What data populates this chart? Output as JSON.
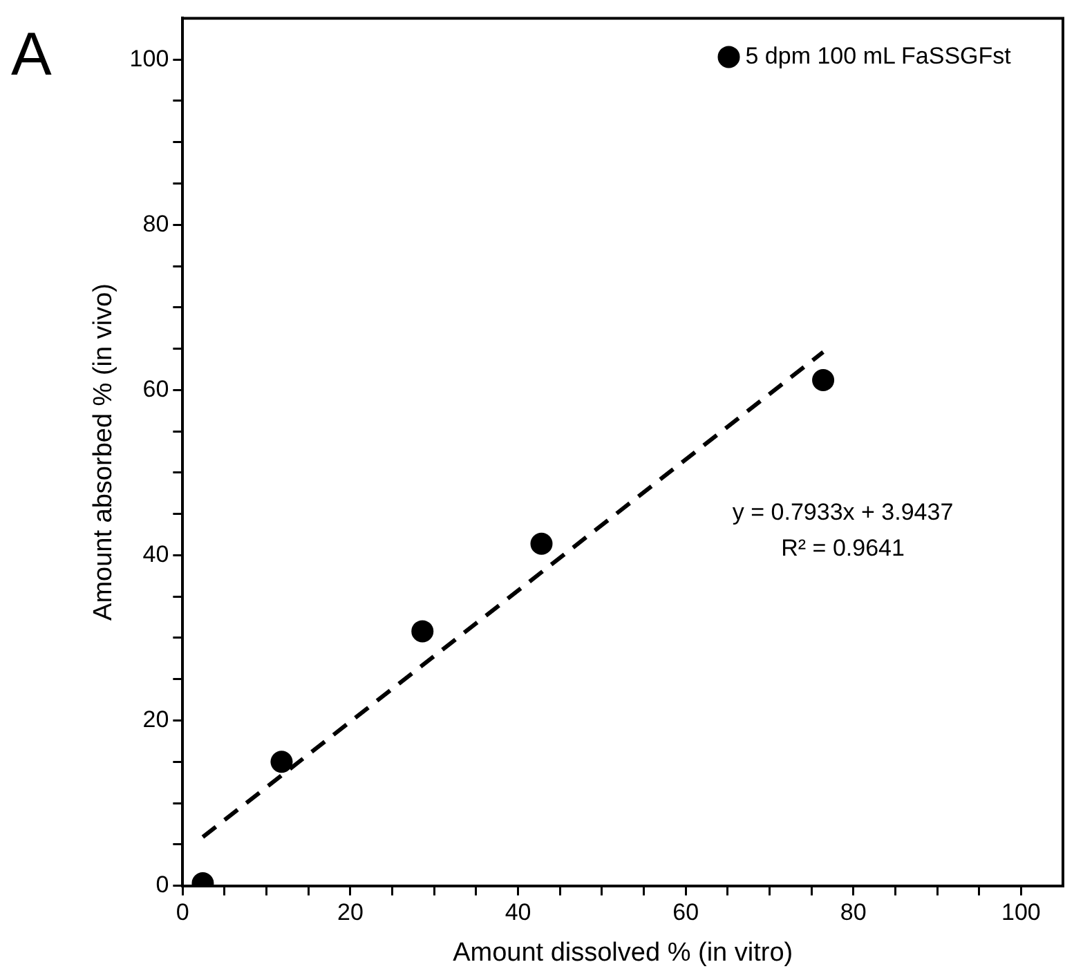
{
  "chart_data": {
    "type": "scatter",
    "xlabel": "Amount dissolved % (in vitro)",
    "ylabel": "Amount absorbed % (in vivo)",
    "xlim": [
      0,
      105
    ],
    "ylim": [
      0,
      105
    ],
    "xticks": [
      0,
      {
        "value": 5,
        "label": null
      },
      {
        "value": 10,
        "label": null
      },
      {
        "value": 15,
        "label": null
      },
      20,
      {
        "value": 25,
        "label": null
      },
      {
        "value": 30,
        "label": null
      },
      {
        "value": 35,
        "label": null
      },
      40,
      {
        "value": 45,
        "label": null
      },
      {
        "value": 50,
        "label": null
      },
      {
        "value": 55,
        "label": null
      },
      60,
      {
        "value": 65,
        "label": null
      },
      {
        "value": 70,
        "label": null
      },
      {
        "value": 75,
        "label": null
      },
      80,
      {
        "value": 85,
        "label": null
      },
      {
        "value": 90,
        "label": null
      },
      {
        "value": 95,
        "label": null
      },
      100
    ],
    "yticks": [
      0,
      {
        "value": 5,
        "label": null
      },
      {
        "value": 10,
        "label": null
      },
      {
        "value": 15,
        "label": null
      },
      20,
      {
        "value": 25,
        "label": null
      },
      {
        "value": 30,
        "label": null
      },
      {
        "value": 35,
        "label": null
      },
      40,
      {
        "value": 45,
        "label": null
      },
      {
        "value": 50,
        "label": null
      },
      {
        "value": 55,
        "label": null
      },
      60,
      {
        "value": 65,
        "label": null
      },
      {
        "value": 70,
        "label": null
      },
      {
        "value": 75,
        "label": null
      },
      80,
      {
        "value": 85,
        "label": null
      },
      {
        "value": 90,
        "label": null
      },
      {
        "value": 95,
        "label": null
      },
      100
    ],
    "legend": "top right",
    "marker": "circle",
    "series": [
      {
        "name": "5 dpm 100 mL FaSSGFst",
        "color": "#000000",
        "x": [
          2.4,
          11.8,
          28.6,
          42.8,
          76.4
        ],
        "values": [
          0.3,
          15.0,
          30.8,
          41.4,
          61.2
        ]
      },
      {
        "type": "line",
        "color": "#000000",
        "line_style": "dashed",
        "marker": "none",
        "x": [
          2.4,
          76.4
        ],
        "values": [
          5.9,
          64.6
        ]
      }
    ],
    "annotations": [
      "A",
      "y = 0.7933x + 3.9437",
      "R² = 0.9641"
    ]
  }
}
